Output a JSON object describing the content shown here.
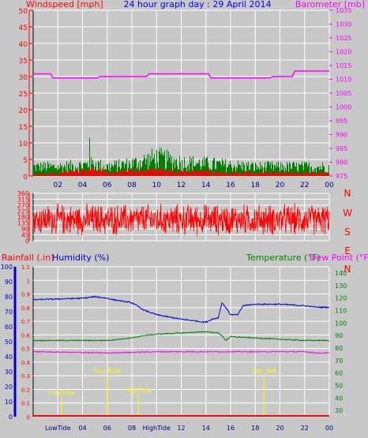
{
  "title": "24 hour graph day : 29 April 2014",
  "colors": {
    "background": "#c8c8c8",
    "plot_bg": "#c8c8c8",
    "grid": "#ffffff",
    "wind": "#ff0000",
    "gust": "#008000",
    "barometer": "#ff00ff",
    "direction": "#ff0000",
    "humidity": "#0000c8",
    "temperature": "#008000",
    "dewpoint": "#ff00ff",
    "rainfall": "#ff0000",
    "tide_label": "#ffff00"
  },
  "chart_data": [
    {
      "type": "line",
      "name": "wind-barometer",
      "ylabel_left": "Windspeed [mph]",
      "ylabel_right": "Barometer [mb]",
      "ylim_left": [
        0,
        50
      ],
      "ylim_right": [
        975,
        1035
      ],
      "left_ticks": [
        "0",
        "5",
        "10",
        "15",
        "20",
        "25",
        "30",
        "35",
        "40",
        "45",
        "50"
      ],
      "right_ticks": [
        "975",
        "980",
        "985",
        "990",
        "995",
        "1000",
        "1005",
        "1010",
        "1015",
        "1020",
        "1025",
        "1030",
        "1035"
      ],
      "x_tick_labels": [
        "02",
        "04",
        "06",
        "08",
        "10",
        "12",
        "14",
        "16",
        "18",
        "20",
        "22",
        "00"
      ],
      "xlim_hours": [
        0,
        24
      ],
      "grid": true,
      "barometer": {
        "hours": [
          0,
          1.4,
          1.6,
          5.2,
          5.4,
          9.2,
          9.4,
          14.2,
          14.4,
          19.2,
          19.4,
          21.0,
          21.2,
          24
        ],
        "values": [
          1012,
          1012,
          1010.5,
          1010.5,
          1011,
          1011,
          1012,
          1012,
          1010.5,
          1010.5,
          1011,
          1011,
          1013,
          1013
        ]
      },
      "wind_profile": {
        "hours": [
          0,
          2,
          4,
          5,
          6,
          8,
          10,
          12,
          14,
          16,
          18,
          20,
          22,
          24
        ],
        "avg": [
          0.5,
          1.0,
          1.5,
          2.5,
          1.0,
          1.5,
          2.0,
          1.5,
          1.5,
          1.0,
          1.0,
          1.0,
          1.0,
          1.0
        ],
        "gust": [
          3,
          3,
          3.5,
          4,
          3,
          4,
          6,
          4.5,
          4,
          3.5,
          3,
          3,
          3,
          3
        ]
      },
      "wind_peak": {
        "hour": 4.6,
        "value": 11.5
      }
    },
    {
      "type": "line",
      "name": "wind-direction",
      "ylim": [
        0,
        360
      ],
      "y_ticks": [
        "0",
        "45",
        "90",
        "135",
        "180",
        "225",
        "270",
        "315",
        "360"
      ],
      "right_labels": [
        "N",
        "W",
        "S",
        "E",
        "N"
      ],
      "xlim_hours": [
        0,
        24
      ],
      "grid": true,
      "mean_direction_deg": 160,
      "spread_deg": 85
    },
    {
      "type": "line",
      "name": "temp-humidity-rain",
      "label_rainfall": "Rainfall (.in)",
      "label_humidity": "Humidity (%)",
      "label_temperature": "Temperature (°F)",
      "label_dewpoint": "Dew Point (°F)",
      "humidity_ylim": [
        0,
        100
      ],
      "humidity_ticks": [
        "0",
        "10",
        "20",
        "30",
        "40",
        "50",
        "60",
        "70",
        "80",
        "90",
        "100"
      ],
      "rain_ylim": [
        0,
        1.1
      ],
      "rain_ticks": [
        "0",
        "0.1",
        "0.2",
        "0.3",
        "0.4",
        "0.5",
        "0.6",
        "0.7",
        "0.8",
        "0.9",
        "1",
        "1.1"
      ],
      "temp_ylim": [
        25,
        145
      ],
      "temp_ticks": [
        "30",
        "40",
        "50",
        "60",
        "70",
        "80",
        "90",
        "100",
        "110",
        "120",
        "130",
        "140"
      ],
      "x_tick_labels": [
        "LowTide",
        "04",
        "06",
        "08",
        "HighTide",
        "12",
        "14",
        "16",
        "18",
        "20",
        "22",
        "00"
      ],
      "xlim_hours": [
        0,
        24
      ],
      "grid": true,
      "humidity": {
        "hours": [
          0,
          4,
          5.0,
          6.0,
          6.5,
          8,
          9,
          10,
          12,
          14,
          14.5,
          15.0,
          15.3,
          15.6,
          16,
          16.6,
          17,
          18,
          20,
          22,
          23,
          24
        ],
        "values": [
          78,
          79,
          80,
          79,
          78,
          76,
          71,
          68,
          65,
          63,
          65,
          66,
          76,
          73,
          68,
          68,
          74,
          75,
          75,
          74,
          73,
          73
        ]
      },
      "temperature": {
        "hours": [
          0,
          4,
          6,
          7,
          8,
          9,
          10,
          12,
          14,
          15,
          15.3,
          15.6,
          16,
          18,
          20,
          22,
          24
        ],
        "values": [
          86,
          86,
          86,
          87,
          88,
          90,
          91,
          92,
          93,
          92,
          90,
          86,
          89,
          88,
          87,
          86,
          86
        ]
      },
      "dewpoint": {
        "hours": [
          0,
          6,
          10,
          14,
          18,
          22,
          23,
          24
        ],
        "values": [
          77,
          76,
          77,
          77,
          77,
          77,
          76,
          76
        ]
      },
      "rainfall": {
        "hours": [
          0,
          24
        ],
        "values": [
          0,
          0
        ]
      },
      "events": [
        {
          "label": "LowTide",
          "hour": 2.3,
          "level": 0.16
        },
        {
          "label": "Sun Rise",
          "hour": 6.0,
          "level": 0.32
        },
        {
          "label": "HighTide",
          "hour": 8.5,
          "level": 0.18
        },
        {
          "label": "Sun Set",
          "hour": 18.7,
          "level": 0.32
        }
      ]
    }
  ]
}
